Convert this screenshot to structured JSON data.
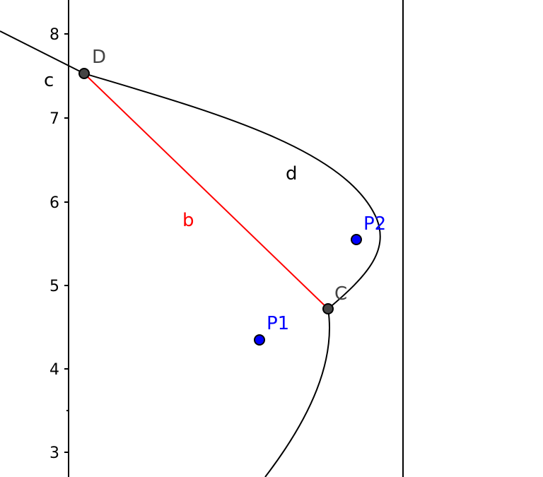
{
  "y_axis": {
    "ticks": [
      "3",
      "4",
      "5",
      "6",
      "7",
      "8"
    ]
  },
  "labels": {
    "point_d": "D",
    "point_c": "C",
    "point_p1": "P1",
    "point_p2": "P2",
    "curve_c": "c",
    "curve_d": "d",
    "segment_b": "b"
  },
  "colors": {
    "axis": "#000000",
    "curve": "#000000",
    "segment": "#ff0000",
    "free_point": "#0000ff",
    "dependent_point": "#444444",
    "label_dependent": "#444444",
    "label_free": "#0000ff",
    "label_segment": "#ff0000"
  },
  "points": {
    "D": {
      "y": 7.53
    },
    "C": {
      "y": 4.71
    },
    "P1": {
      "y": 4.34
    },
    "P2": {
      "y": 5.54
    }
  }
}
